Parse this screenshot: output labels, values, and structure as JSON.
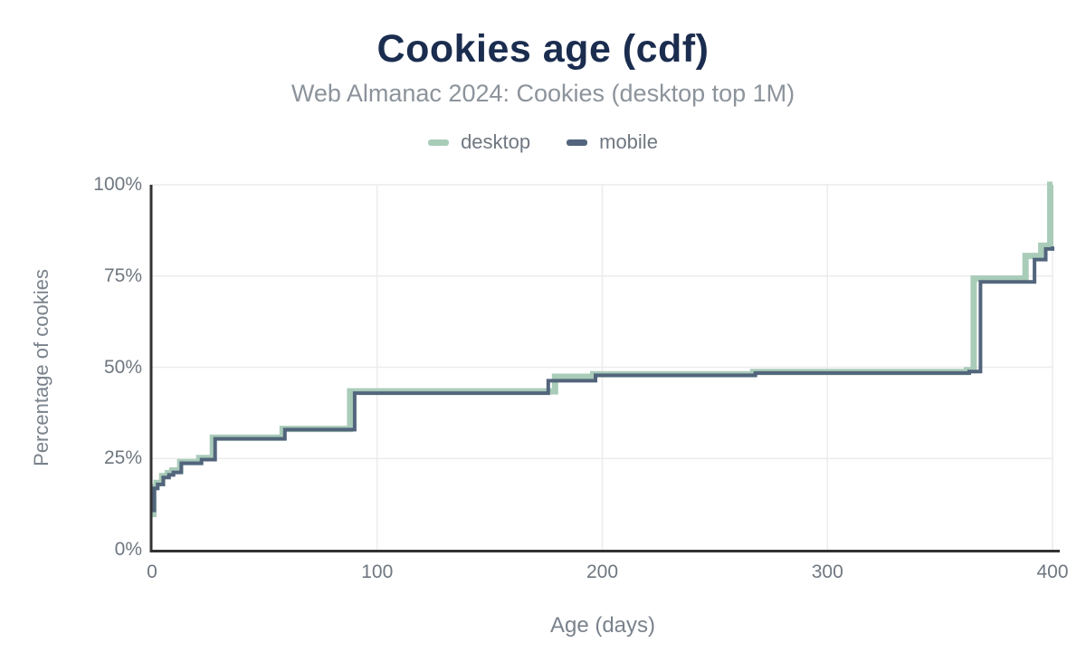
{
  "title": "Cookies age (cdf)",
  "subtitle": "Web Almanac 2024: Cookies (desktop top 1M)",
  "colors": {
    "title": "#1b2d4f",
    "subtitle": "#8c939b",
    "tick_label": "#6f7780",
    "axis_line": "#333333",
    "gridline": "#ececec",
    "desktop": "#a9ccb9",
    "mobile": "#52657c"
  },
  "legend": [
    {
      "label": "desktop",
      "color": "#a9ccb9"
    },
    {
      "label": "mobile",
      "color": "#52657c"
    }
  ],
  "chart_data": {
    "type": "line",
    "subtype": "step-cdf",
    "title": "Cookies age (cdf)",
    "subtitle": "Web Almanac 2024: Cookies (desktop top 1M)",
    "xlabel": "Age (days)",
    "ylabel": "Percentage of cookies",
    "xlim": [
      0,
      400
    ],
    "ylim": [
      0,
      100
    ],
    "grid": true,
    "legend_position": "top",
    "xticks": [
      {
        "label": "0",
        "value": 0
      },
      {
        "label": "100",
        "value": 100
      },
      {
        "label": "200",
        "value": 200
      },
      {
        "label": "300",
        "value": 300
      },
      {
        "label": "400",
        "value": 400
      }
    ],
    "yticks": [
      {
        "label": "0%",
        "value": 0
      },
      {
        "label": "25%",
        "value": 25
      },
      {
        "label": "50%",
        "value": 50
      },
      {
        "label": "75%",
        "value": 75
      },
      {
        "label": "100%",
        "value": 100
      }
    ],
    "series": [
      {
        "name": "desktop",
        "color": "#a9ccb9",
        "stroke_width": 7,
        "points": [
          [
            0,
            9.8
          ],
          [
            0.6,
            17.2
          ],
          [
            2,
            18.3
          ],
          [
            4.5,
            20.2
          ],
          [
            7,
            21.0
          ],
          [
            9,
            21.7
          ],
          [
            12.5,
            24.0
          ],
          [
            21,
            25.1
          ],
          [
            27,
            30.7
          ],
          [
            58,
            33.1
          ],
          [
            88,
            43.4
          ],
          [
            179,
            47.4
          ],
          [
            196,
            48.1
          ],
          [
            267,
            48.7
          ],
          [
            362,
            49.2
          ],
          [
            365,
            74.3
          ],
          [
            388,
            80.5
          ],
          [
            395,
            83.3
          ],
          [
            399,
            100
          ],
          [
            400,
            100
          ]
        ]
      },
      {
        "name": "mobile",
        "color": "#52657c",
        "stroke_width": 4,
        "points": [
          [
            0,
            10.8
          ],
          [
            1,
            16.8
          ],
          [
            2.5,
            17.9
          ],
          [
            5,
            19.8
          ],
          [
            7.5,
            20.5
          ],
          [
            9.5,
            21.2
          ],
          [
            13,
            23.7
          ],
          [
            22,
            24.7
          ],
          [
            28,
            30.4
          ],
          [
            59,
            32.9
          ],
          [
            90,
            42.9
          ],
          [
            176,
            46.3
          ],
          [
            197,
            47.8
          ],
          [
            268,
            48.4
          ],
          [
            363,
            48.8
          ],
          [
            368,
            73.4
          ],
          [
            392,
            79.5
          ],
          [
            397,
            82.4
          ],
          [
            400,
            83.1
          ]
        ]
      }
    ]
  }
}
